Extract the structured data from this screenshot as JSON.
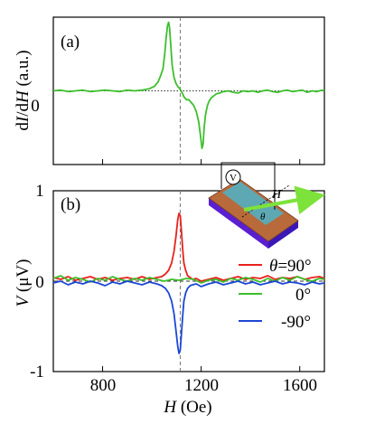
{
  "chart_data": [
    {
      "type": "line",
      "panel_label": "(a)",
      "ylabel_parts": [
        "d",
        "I",
        "/d",
        "H",
        " (a.u.)"
      ],
      "xlim": [
        600,
        1700
      ],
      "ylim": [
        -1,
        1
      ],
      "yticks": [
        {
          "value": 0,
          "label": "0"
        }
      ],
      "xticks": [
        800,
        1200,
        1600
      ],
      "reference_lines": [
        {
          "orientation": "horizontal",
          "value": 0,
          "style": "dotted"
        },
        {
          "orientation": "vertical",
          "value": 1115,
          "style": "dashed"
        }
      ],
      "series": [
        {
          "color": "#3cbf2c",
          "x": [
            600,
            630,
            660,
            690,
            720,
            750,
            780,
            810,
            840,
            870,
            900,
            930,
            960,
            990,
            1010,
            1025,
            1035,
            1045,
            1052,
            1058,
            1063,
            1068,
            1072,
            1077,
            1082,
            1090,
            1098,
            1105,
            1110,
            1115,
            1120,
            1125,
            1130,
            1140,
            1150,
            1160,
            1170,
            1180,
            1190,
            1197,
            1203,
            1208,
            1212,
            1218,
            1225,
            1232,
            1240,
            1250,
            1262,
            1275,
            1290,
            1310,
            1330,
            1350,
            1370,
            1390,
            1410,
            1430,
            1450,
            1470,
            1490,
            1510,
            1530,
            1550,
            1570,
            1590,
            1610,
            1630,
            1650,
            1670,
            1690,
            1700
          ],
          "y": [
            0.0,
            0.01,
            -0.01,
            0.0,
            0.01,
            -0.01,
            0.0,
            0.01,
            0.0,
            -0.01,
            0.01,
            0.0,
            0.01,
            0.03,
            0.06,
            0.12,
            0.2,
            0.3,
            0.5,
            0.72,
            0.88,
            0.93,
            0.85,
            0.6,
            0.35,
            0.18,
            0.1,
            0.06,
            0.04,
            0.02,
            -0.01,
            -0.04,
            -0.08,
            -0.12,
            -0.12,
            -0.16,
            -0.2,
            -0.28,
            -0.42,
            -0.6,
            -0.78,
            -0.72,
            -0.5,
            -0.32,
            -0.2,
            -0.14,
            -0.1,
            -0.07,
            -0.04,
            -0.03,
            -0.01,
            0.0,
            -0.02,
            -0.03,
            0.0,
            -0.01,
            0.0,
            -0.02,
            0.0,
            0.01,
            -0.01,
            -0.02,
            0.0,
            0.01,
            -0.01,
            0.0,
            0.01,
            -0.02,
            0.0,
            -0.01,
            0.01,
            0.0
          ]
        }
      ]
    },
    {
      "type": "line",
      "panel_label": "(b)",
      "ylabel_parts": [
        "V",
        " (μV)"
      ],
      "xlabel_parts": [
        "H",
        " (Oe)"
      ],
      "xlim": [
        600,
        1700
      ],
      "ylim": [
        -1,
        1
      ],
      "yticks": [
        {
          "value": 1,
          "label": "1"
        },
        {
          "value": 0,
          "label": "0"
        },
        {
          "value": -1,
          "label": "-1"
        }
      ],
      "xticks": [
        {
          "value": 800,
          "label": "800"
        },
        {
          "value": 1200,
          "label": "1200"
        },
        {
          "value": 1600,
          "label": "1600"
        }
      ],
      "reference_lines": [
        {
          "orientation": "horizontal",
          "value": 0,
          "style": "dashed"
        },
        {
          "orientation": "vertical",
          "value": 1115,
          "style": "dashed"
        }
      ],
      "legend_position": "right",
      "series": [
        {
          "name_parts": [
            "θ",
            "=90°"
          ],
          "color": "#e8211c",
          "x": [
            600,
            630,
            660,
            690,
            720,
            750,
            780,
            810,
            840,
            870,
            900,
            930,
            960,
            990,
            1020,
            1040,
            1055,
            1068,
            1080,
            1090,
            1098,
            1105,
            1110,
            1115,
            1120,
            1125,
            1130,
            1137,
            1145,
            1155,
            1165,
            1180,
            1200,
            1230,
            1260,
            1290,
            1320,
            1350,
            1380,
            1410,
            1440,
            1470,
            1500,
            1530,
            1560,
            1590,
            1620,
            1650,
            1680,
            1700
          ],
          "y": [
            0.04,
            0.02,
            0.05,
            0.01,
            0.03,
            0.05,
            0.02,
            0.04,
            0.01,
            0.03,
            0.04,
            0.02,
            0.05,
            0.02,
            0.04,
            0.05,
            0.08,
            0.12,
            0.2,
            0.33,
            0.5,
            0.68,
            0.75,
            0.72,
            0.55,
            0.35,
            0.2,
            0.12,
            0.06,
            0.04,
            0.02,
            0.03,
            0.0,
            0.02,
            0.04,
            0.01,
            0.03,
            0.05,
            0.02,
            0.04,
            0.03,
            0.06,
            0.02,
            0.04,
            0.03,
            0.05,
            0.02,
            0.04,
            0.05,
            0.03
          ]
        },
        {
          "name_parts": [
            "",
            "0°"
          ],
          "color": "#3cbf2c",
          "x": [
            600,
            630,
            660,
            690,
            720,
            750,
            780,
            810,
            840,
            870,
            900,
            930,
            960,
            990,
            1020,
            1050,
            1080,
            1110,
            1140,
            1170,
            1200,
            1230,
            1260,
            1290,
            1320,
            1350,
            1380,
            1410,
            1440,
            1470,
            1500,
            1530,
            1560,
            1590,
            1620,
            1650,
            1680,
            1700
          ],
          "y": [
            0.03,
            0.06,
            0.01,
            0.04,
            0.02,
            -0.01,
            0.03,
            0.01,
            0.05,
            0.02,
            0.0,
            0.03,
            0.01,
            0.04,
            0.02,
            0.0,
            0.02,
            0.01,
            0.03,
            0.02,
            -0.02,
            0.01,
            0.02,
            -0.01,
            0.03,
            0.01,
            0.04,
            0.02,
            -0.01,
            0.03,
            0.0,
            0.04,
            0.01,
            0.05,
            0.02,
            0.0,
            0.03,
            0.02
          ]
        },
        {
          "name_parts": [
            "",
            "-90°"
          ],
          "color": "#1c47d4",
          "x": [
            600,
            630,
            660,
            690,
            720,
            750,
            780,
            810,
            840,
            870,
            900,
            930,
            960,
            990,
            1020,
            1040,
            1055,
            1068,
            1080,
            1090,
            1098,
            1105,
            1110,
            1115,
            1120,
            1125,
            1130,
            1137,
            1145,
            1155,
            1165,
            1180,
            1200,
            1230,
            1260,
            1290,
            1320,
            1350,
            1380,
            1410,
            1440,
            1470,
            1500,
            1530,
            1560,
            1590,
            1620,
            1650,
            1680,
            1700
          ],
          "y": [
            -0.02,
            0.0,
            -0.04,
            -0.01,
            -0.03,
            0.0,
            -0.02,
            -0.05,
            -0.01,
            -0.03,
            0.0,
            -0.02,
            -0.04,
            -0.01,
            -0.03,
            -0.05,
            -0.08,
            -0.13,
            -0.22,
            -0.36,
            -0.55,
            -0.72,
            -0.8,
            -0.76,
            -0.58,
            -0.38,
            -0.22,
            -0.13,
            -0.08,
            -0.05,
            -0.04,
            -0.03,
            -0.06,
            -0.03,
            -0.01,
            -0.04,
            -0.02,
            0.0,
            -0.03,
            -0.01,
            -0.04,
            -0.02,
            0.0,
            -0.03,
            -0.01,
            -0.02,
            -0.04,
            -0.01,
            -0.03,
            -0.02
          ]
        }
      ]
    }
  ],
  "inset": {
    "voltmeter_label": "V",
    "field_label": "H",
    "angle_label": "θ"
  }
}
